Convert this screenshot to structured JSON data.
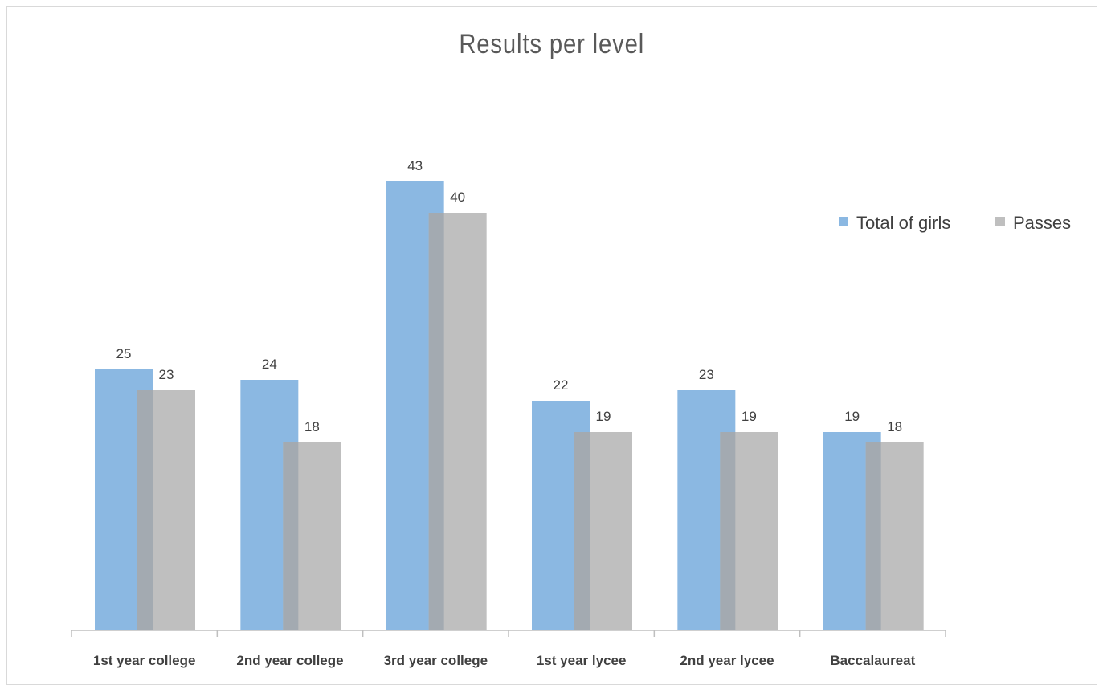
{
  "chart_data": {
    "type": "bar",
    "title": "Results per level",
    "categories": [
      "1st year college",
      "2nd year college",
      "3rd year college",
      "1st year lycee",
      "2nd year lycee",
      "Baccalaureat"
    ],
    "series": [
      {
        "name": "Total of girls",
        "values": [
          25,
          24,
          43,
          22,
          23,
          19
        ],
        "color": "#8bb8e2"
      },
      {
        "name": "Passes",
        "values": [
          23,
          18,
          40,
          19,
          19,
          18
        ],
        "color": "#bfbfbf"
      }
    ],
    "overlap_color": "#a3aab1",
    "ylim": [
      0,
      43
    ],
    "legend_position": "right",
    "grid": false,
    "data_labels": true
  }
}
